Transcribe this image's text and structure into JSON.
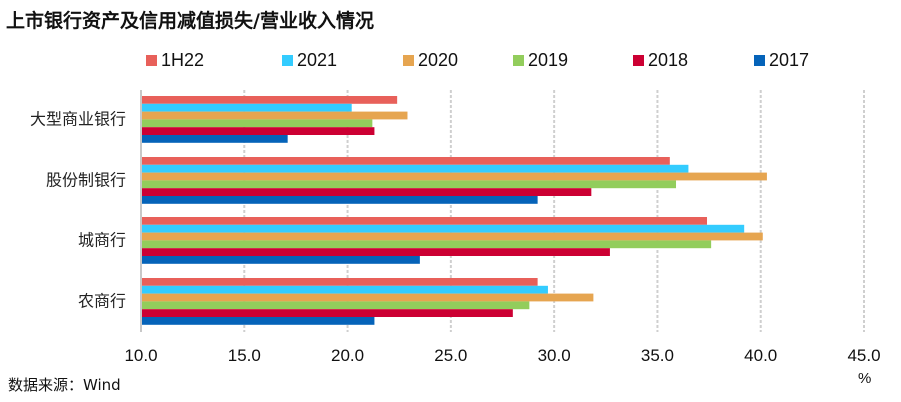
{
  "chart_data": {
    "type": "bar",
    "orientation": "horizontal",
    "title": "上市银行资产及信用减值损失/营业收入情况",
    "xlabel": "%",
    "ylabel": "",
    "xlim": [
      10,
      45
    ],
    "xticks": [
      10,
      15,
      20,
      25,
      30,
      35,
      40,
      45
    ],
    "xtick_labels": [
      "10.0",
      "15.0",
      "20.0",
      "25.0",
      "30.0",
      "35.0",
      "40.0",
      "45.0"
    ],
    "grid": "vertical dashed",
    "legend_position": "top",
    "categories": [
      "大型商业银行",
      "股份制银行",
      "城商行",
      "农商行"
    ],
    "series": [
      {
        "name": "1H22",
        "color": "#E8605A",
        "values": [
          22.4,
          35.6,
          37.4,
          29.2
        ]
      },
      {
        "name": "2021",
        "color": "#33CCFF",
        "values": [
          20.2,
          36.5,
          39.2,
          29.7
        ]
      },
      {
        "name": "2020",
        "color": "#E6A550",
        "values": [
          22.9,
          40.3,
          40.1,
          31.9
        ]
      },
      {
        "name": "2019",
        "color": "#92CD5C",
        "values": [
          21.2,
          35.9,
          37.6,
          28.8
        ]
      },
      {
        "name": "2018",
        "color": "#CC0033",
        "values": [
          21.3,
          31.8,
          32.7,
          28.0
        ]
      },
      {
        "name": "2017",
        "color": "#0563B9",
        "values": [
          17.1,
          29.2,
          23.5,
          21.3
        ]
      }
    ]
  },
  "source": "数据来源：Wind"
}
